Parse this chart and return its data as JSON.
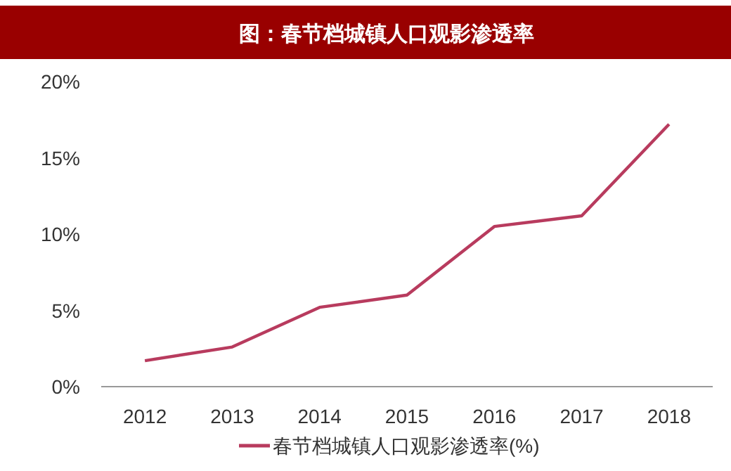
{
  "chart_data": {
    "type": "line",
    "title": "图：春节档城镇人口观影渗透率",
    "categories": [
      "2012",
      "2013",
      "2014",
      "2015",
      "2016",
      "2017",
      "2018"
    ],
    "series": [
      {
        "name": "春节档城镇人口观影渗透率(%)",
        "color": "#b83b5e",
        "values": [
          1.7,
          2.6,
          5.2,
          6.0,
          10.5,
          11.2,
          17.2
        ]
      }
    ],
    "ylim": [
      0,
      20
    ],
    "yticks": [
      {
        "value": 0,
        "label": "0%"
      },
      {
        "value": 5,
        "label": "5%"
      },
      {
        "value": 10,
        "label": "10%"
      },
      {
        "value": 15,
        "label": "15%"
      },
      {
        "value": 20,
        "label": "20%"
      }
    ],
    "legend": "bottom",
    "grid": false,
    "marker": "none",
    "line_style": "solid"
  }
}
